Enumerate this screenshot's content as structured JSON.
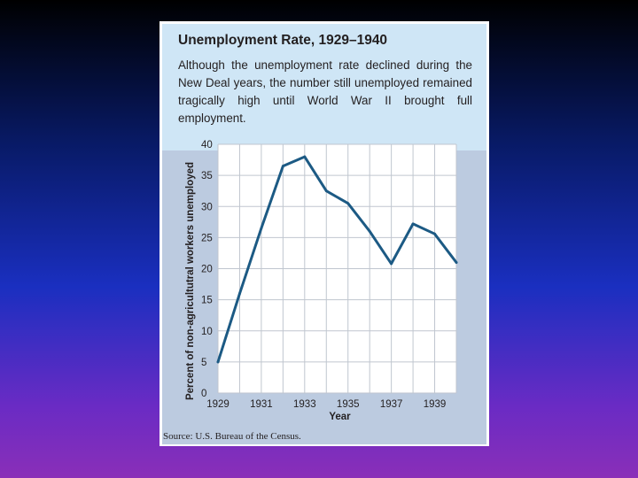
{
  "header": {
    "title": "Unemployment Rate, 1929–1940",
    "description": "Although the unemployment rate declined during the New Deal years, the number still unemployed remained tragically high until World War II brought full employment."
  },
  "source": "Source: U.S. Bureau of the Census.",
  "colors": {
    "line": "#1c5a84",
    "header_bg": "#cfe6f6",
    "plot_bg": "#bccbe0",
    "plot_area": "#ffffff",
    "grid": "#c0c6cf"
  },
  "chart_data": {
    "type": "line",
    "title": "Unemployment Rate, 1929–1940",
    "xlabel": "Year",
    "ylabel": "Percent of non-agricultutral workers unemployed",
    "xlim": [
      1929,
      1940
    ],
    "ylim": [
      0,
      40
    ],
    "xticks": [
      1929,
      1931,
      1933,
      1935,
      1937,
      1939
    ],
    "yticks": [
      0,
      5,
      10,
      15,
      20,
      25,
      30,
      35,
      40
    ],
    "grid": true,
    "series": [
      {
        "x": [
          1929,
          1930,
          1931,
          1932,
          1933,
          1934,
          1935,
          1936,
          1937,
          1938,
          1939,
          1940
        ],
        "values": [
          5,
          16,
          26.5,
          36.5,
          38,
          32.5,
          30.5,
          26,
          20.8,
          27.2,
          25.6,
          21
        ]
      }
    ]
  }
}
